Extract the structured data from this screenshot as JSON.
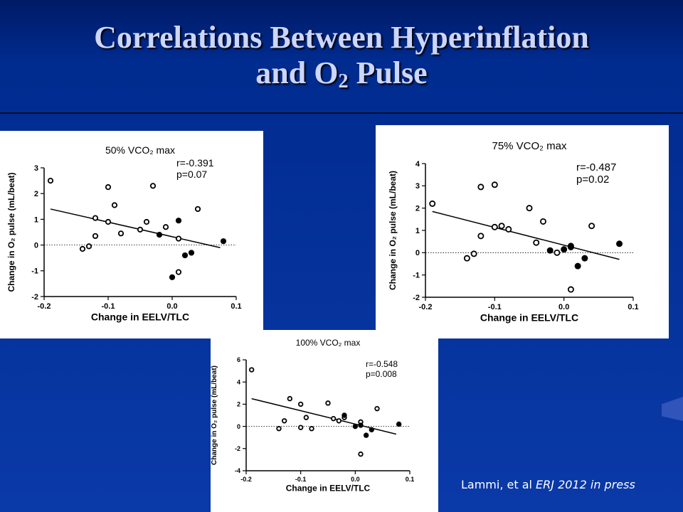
{
  "title": {
    "line1": "Correlations Between Hyperinflation",
    "line2_pre": "and O",
    "line2_sub": "2",
    "line2_post": " Pulse"
  },
  "citation": {
    "authors": "Lammi, et al ",
    "journal": "ERJ 2012 in press"
  },
  "chart_data": [
    {
      "type": "scatter",
      "title": "50% VCO₂ max",
      "xlabel": "Change in EELV/TLC",
      "ylabel": "Change in O₂ pulse (mL/beat)",
      "xlim": [
        -0.2,
        0.1
      ],
      "ylim": [
        -2,
        3
      ],
      "xticks": [
        -0.2,
        -0.1,
        0.0,
        0.1
      ],
      "xtick_labels": [
        "-0.2",
        "-0.1",
        "0.0",
        "0.1"
      ],
      "yticks": [
        -2,
        -1,
        0,
        1,
        2,
        3
      ],
      "ytick_labels": [
        "-2",
        "-1",
        "0",
        "1",
        "2",
        "3"
      ],
      "annotations": [
        "r=-0.391",
        "p=0.07"
      ],
      "fit_line": {
        "x": [
          -0.19,
          0.075
        ],
        "y": [
          1.4,
          -0.1
        ]
      },
      "zero_line": true,
      "series": [
        {
          "marker": "open",
          "points": [
            [
              -0.19,
              2.5
            ],
            [
              -0.14,
              -0.15
            ],
            [
              -0.13,
              -0.05
            ],
            [
              -0.12,
              0.35
            ],
            [
              -0.12,
              1.05
            ],
            [
              -0.1,
              2.25
            ],
            [
              -0.1,
              0.9
            ],
            [
              -0.09,
              1.55
            ],
            [
              -0.08,
              0.45
            ],
            [
              -0.05,
              0.6
            ],
            [
              -0.04,
              0.9
            ],
            [
              -0.03,
              2.3
            ],
            [
              -0.01,
              0.7
            ],
            [
              0.01,
              0.25
            ],
            [
              0.01,
              -1.05
            ],
            [
              0.04,
              1.4
            ]
          ]
        },
        {
          "marker": "filled",
          "points": [
            [
              -0.02,
              0.4
            ],
            [
              0.0,
              -1.25
            ],
            [
              0.01,
              0.95
            ],
            [
              0.02,
              -0.4
            ],
            [
              0.03,
              -0.3
            ],
            [
              0.08,
              0.15
            ]
          ]
        }
      ]
    },
    {
      "type": "scatter",
      "title": "75% VCO₂ max",
      "xlabel": "Change in EELV/TLC",
      "ylabel": "Change in O₂ pulse (mL/beat)",
      "xlim": [
        -0.2,
        0.1
      ],
      "ylim": [
        -2,
        4
      ],
      "xticks": [
        -0.2,
        -0.1,
        0.0,
        0.1
      ],
      "xtick_labels": [
        "-0.2",
        "-0.1",
        "0.0",
        "0.1"
      ],
      "yticks": [
        -2,
        -1,
        0,
        1,
        2,
        3,
        4
      ],
      "ytick_labels": [
        "-2",
        "-1",
        "0",
        "1",
        "2",
        "3",
        "4"
      ],
      "annotations": [
        "r=-0.487",
        "p=0.02"
      ],
      "fit_line": {
        "x": [
          -0.19,
          0.08
        ],
        "y": [
          1.85,
          -0.3
        ]
      },
      "zero_line": true,
      "series": [
        {
          "marker": "open",
          "points": [
            [
              -0.19,
              2.2
            ],
            [
              -0.14,
              -0.25
            ],
            [
              -0.13,
              -0.05
            ],
            [
              -0.12,
              2.95
            ],
            [
              -0.12,
              0.75
            ],
            [
              -0.1,
              3.05
            ],
            [
              -0.1,
              1.15
            ],
            [
              -0.09,
              1.2
            ],
            [
              -0.08,
              1.05
            ],
            [
              -0.05,
              2.0
            ],
            [
              -0.04,
              0.45
            ],
            [
              -0.03,
              1.4
            ],
            [
              -0.01,
              0.0
            ],
            [
              0.01,
              0.25
            ],
            [
              0.01,
              -1.65
            ],
            [
              0.04,
              1.2
            ]
          ]
        },
        {
          "marker": "filled",
          "points": [
            [
              -0.02,
              0.1
            ],
            [
              0.0,
              0.15
            ],
            [
              0.01,
              0.3
            ],
            [
              0.02,
              -0.6
            ],
            [
              0.03,
              -0.25
            ],
            [
              0.08,
              0.4
            ]
          ]
        }
      ]
    },
    {
      "type": "scatter",
      "title": "100% VCO₂ max",
      "xlabel": "Change in EELV/TLC",
      "ylabel": "Change in O₂ pulse (mL/beat)",
      "xlim": [
        -0.2,
        0.1
      ],
      "ylim": [
        -4,
        6
      ],
      "xticks": [
        -0.2,
        -0.1,
        0.0,
        0.1
      ],
      "xtick_labels": [
        "-0.2",
        "-0.1",
        "0.0",
        "0.1"
      ],
      "yticks": [
        -4,
        -2,
        0,
        2,
        4,
        6
      ],
      "ytick_labels": [
        "-4",
        "-2",
        "0",
        "2",
        "4",
        "6"
      ],
      "annotations": [
        "r=-0.548",
        "p=0.008"
      ],
      "fit_line": {
        "x": [
          -0.19,
          0.075
        ],
        "y": [
          2.5,
          -0.7
        ]
      },
      "zero_line": true,
      "series": [
        {
          "marker": "open",
          "points": [
            [
              -0.19,
              5.1
            ],
            [
              -0.14,
              -0.2
            ],
            [
              -0.13,
              0.5
            ],
            [
              -0.12,
              2.5
            ],
            [
              -0.1,
              2.0
            ],
            [
              -0.1,
              -0.1
            ],
            [
              -0.09,
              0.8
            ],
            [
              -0.08,
              -0.2
            ],
            [
              -0.05,
              2.1
            ],
            [
              -0.04,
              0.7
            ],
            [
              -0.03,
              0.5
            ],
            [
              -0.02,
              0.8
            ],
            [
              0.01,
              0.4
            ],
            [
              0.01,
              -2.5
            ],
            [
              0.04,
              1.6
            ]
          ]
        },
        {
          "marker": "filled",
          "points": [
            [
              -0.02,
              1.0
            ],
            [
              0.0,
              0.0
            ],
            [
              0.01,
              0.1
            ],
            [
              0.02,
              -0.8
            ],
            [
              0.03,
              -0.3
            ],
            [
              0.08,
              0.2
            ]
          ]
        }
      ]
    }
  ]
}
